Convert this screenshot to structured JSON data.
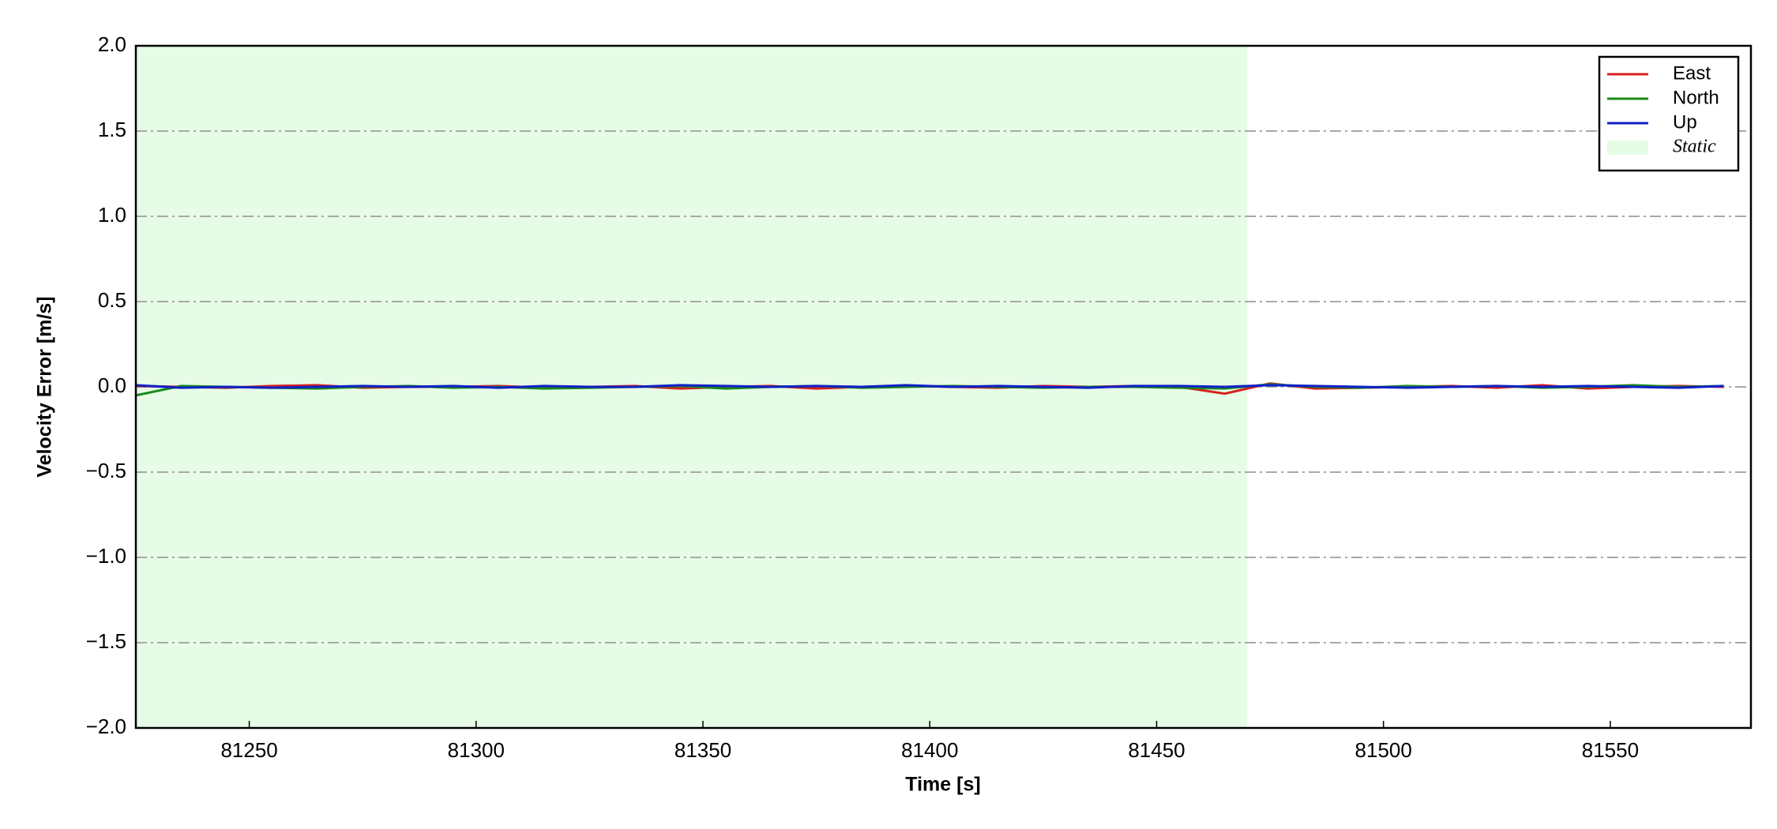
{
  "chart_data": {
    "type": "line",
    "xlabel": "Time [s]",
    "ylabel": "Velocity Error [m/s]",
    "x": [
      81225,
      81235,
      81245,
      81255,
      81265,
      81275,
      81285,
      81295,
      81305,
      81315,
      81325,
      81335,
      81345,
      81355,
      81365,
      81375,
      81385,
      81395,
      81405,
      81415,
      81425,
      81435,
      81445,
      81455,
      81465,
      81475,
      81485,
      81495,
      81505,
      81515,
      81525,
      81535,
      81545,
      81555,
      81565,
      81575
    ],
    "series": [
      {
        "name": "East",
        "color": "#d62020",
        "values": [
          0.005,
          0.0,
          -0.005,
          0.005,
          0.01,
          -0.005,
          0.0,
          0.0,
          0.005,
          -0.005,
          0.0,
          0.005,
          -0.01,
          0.0,
          0.005,
          -0.01,
          0.0,
          0.005,
          0.0,
          -0.005,
          0.005,
          0.0,
          0.005,
          0.0,
          -0.04,
          0.02,
          -0.01,
          -0.005,
          0.0,
          0.005,
          -0.005,
          0.01,
          -0.01,
          0.0,
          0.005,
          0.0
        ]
      },
      {
        "name": "North",
        "color": "#1a8a1a",
        "values": [
          -0.05,
          0.005,
          0.0,
          -0.005,
          -0.01,
          0.0,
          0.005,
          -0.005,
          0.0,
          -0.01,
          -0.005,
          0.0,
          0.005,
          -0.01,
          0.0,
          0.005,
          -0.005,
          0.0,
          0.005,
          0.0,
          -0.005,
          0.0,
          0.0,
          -0.005,
          -0.01,
          0.015,
          0.0,
          -0.005,
          0.005,
          0.0,
          0.005,
          -0.005,
          0.0,
          0.01,
          0.0,
          0.005
        ]
      },
      {
        "name": "Up",
        "color": "#1020c8",
        "values": [
          0.01,
          -0.005,
          0.0,
          -0.005,
          0.0,
          0.005,
          0.0,
          0.005,
          -0.005,
          0.005,
          0.0,
          0.0,
          0.01,
          0.005,
          0.0,
          0.005,
          0.0,
          0.01,
          0.0,
          0.005,
          0.0,
          -0.005,
          0.005,
          0.005,
          0.0,
          0.01,
          0.005,
          0.0,
          -0.005,
          0.0,
          0.005,
          0.0,
          0.005,
          0.0,
          -0.005,
          0.005
        ]
      }
    ],
    "shaded_region": {
      "label": "Static",
      "x": [
        81225,
        81470
      ],
      "color": "#e6fce6"
    },
    "xlim": [
      81225,
      81581
    ],
    "xticks": [
      81250,
      81300,
      81350,
      81400,
      81450,
      81500,
      81550
    ],
    "ylim": [
      -2.0,
      2.0
    ],
    "yticks": [
      {
        "value": -2.0,
        "label": "−2.0"
      },
      {
        "value": -1.5,
        "label": "−1.5"
      },
      {
        "value": -1.0,
        "label": "−1.0"
      },
      {
        "value": -0.5,
        "label": "−0.5"
      },
      {
        "value": 0.0,
        "label": "0.0"
      },
      {
        "value": 0.5,
        "label": "0.5"
      },
      {
        "value": 1.0,
        "label": "1.0"
      },
      {
        "value": 1.5,
        "label": "1.5"
      },
      {
        "value": 2.0,
        "label": "2.0"
      }
    ],
    "grid": true,
    "legend": "upper right"
  }
}
